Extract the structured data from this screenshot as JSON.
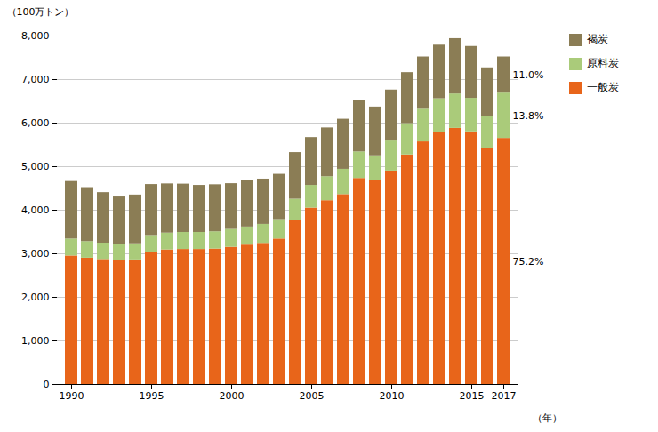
{
  "chart_data": {
    "type": "bar",
    "stacked": true,
    "categories": [
      "1990",
      null,
      null,
      null,
      null,
      "1995",
      null,
      null,
      null,
      null,
      "2000",
      null,
      null,
      null,
      null,
      "2005",
      null,
      null,
      null,
      null,
      "2010",
      null,
      null,
      null,
      null,
      "2015",
      null,
      "2017"
    ],
    "series": [
      {
        "name": "一般炭",
        "color": "#E8651A",
        "values": [
          2950,
          2900,
          2870,
          2840,
          2860,
          3040,
          3090,
          3100,
          3100,
          3110,
          3150,
          3200,
          3240,
          3340,
          3770,
          4050,
          4220,
          4360,
          4730,
          4680,
          4900,
          5270,
          5570,
          5780,
          5880,
          5800,
          5410,
          5650
        ]
      },
      {
        "name": "原料炭",
        "color": "#AACB7A",
        "values": [
          390,
          380,
          375,
          365,
          370,
          380,
          385,
          390,
          390,
          395,
          410,
          415,
          435,
          445,
          485,
          520,
          550,
          580,
          610,
          570,
          690,
          720,
          750,
          780,
          790,
          770,
          750,
          1040
        ]
      },
      {
        "name": "褐炭",
        "color": "#8B7D55",
        "values": [
          1320,
          1240,
          1160,
          1100,
          1120,
          1170,
          1130,
          1110,
          1080,
          1080,
          1050,
          1070,
          1040,
          1040,
          1070,
          1100,
          1120,
          1150,
          1190,
          1120,
          1170,
          1170,
          1200,
          1230,
          1270,
          1190,
          1110,
          830
        ]
      }
    ],
    "ylabel": "（100万トン）",
    "xlabel": "（年）",
    "ylim": [
      0,
      8000
    ],
    "yticks": [
      0,
      {
        "value": 1000,
        "label": "1,000"
      },
      {
        "value": 2000,
        "label": "2,000"
      },
      {
        "value": 3000,
        "label": "3,000"
      },
      {
        "value": 4000,
        "label": "4,000"
      },
      {
        "value": 5000,
        "label": "5,000"
      },
      {
        "value": 6000,
        "label": "6,000"
      },
      {
        "value": 7000,
        "label": "7,000"
      },
      {
        "value": 8000,
        "label": "8,000"
      }
    ],
    "grid": true,
    "legend": "right",
    "annotations": [
      {
        "text": "75.2%",
        "category": "2017",
        "series": "一般炭"
      },
      {
        "text": "13.8%",
        "category": "2017",
        "series": "原料炭"
      },
      {
        "text": "11.0%",
        "category": "2017",
        "series": "褐炭"
      }
    ]
  }
}
